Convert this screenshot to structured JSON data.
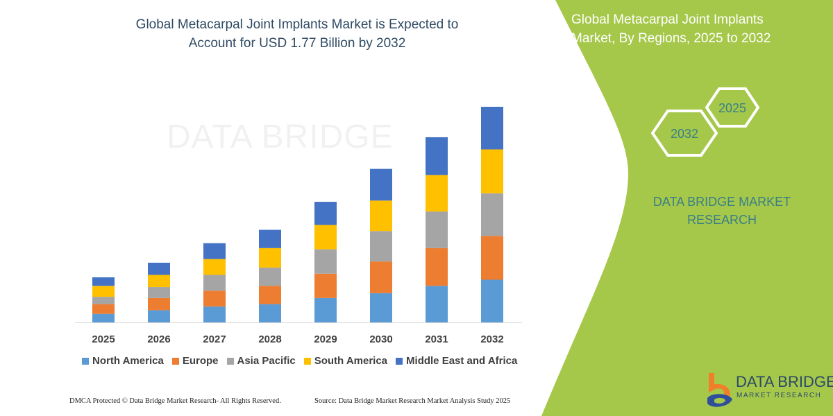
{
  "title_line1": "Global Metacarpal Joint Implants Market is Expected to",
  "title_line2": "Account for USD 1.77 Billion by 2032",
  "right_panel": {
    "title_line1": "Global Metacarpal Joint Implants",
    "title_line2": "Market, By Regions, 2025 to 2032",
    "hex_years": [
      "2032",
      "2025"
    ],
    "brand_line1": "DATA BRIDGE MARKET",
    "brand_line2": "RESEARCH",
    "logo_text": "DATA BRIDGE",
    "logo_subtext": "MARKET RESEARCH"
  },
  "watermark": "DATA BRIDGE",
  "footer": {
    "left": "DMCA Protected © Data Bridge Market Research-  All Rights Reserved.",
    "right": "Source: Data Bridge Market Research  Market Analysis Study 2025"
  },
  "colors": {
    "panel_green": "#a5c84b",
    "brand_teal": "#3b7f86"
  },
  "chart_data": {
    "type": "bar",
    "stacked": true,
    "categories": [
      "2025",
      "2026",
      "2027",
      "2028",
      "2029",
      "2030",
      "2031",
      "2032"
    ],
    "series": [
      {
        "name": "North America",
        "color": "#5b9bd5",
        "values": [
          0.07,
          0.1,
          0.13,
          0.15,
          0.2,
          0.24,
          0.3,
          0.35
        ]
      },
      {
        "name": "Europe",
        "color": "#ed7d31",
        "values": [
          0.08,
          0.1,
          0.13,
          0.15,
          0.2,
          0.26,
          0.31,
          0.36
        ]
      },
      {
        "name": "Asia Pacific",
        "color": "#a5a5a5",
        "values": [
          0.06,
          0.09,
          0.13,
          0.15,
          0.2,
          0.25,
          0.3,
          0.35
        ]
      },
      {
        "name": "South America",
        "color": "#ffc000",
        "values": [
          0.09,
          0.1,
          0.13,
          0.16,
          0.2,
          0.25,
          0.3,
          0.36
        ]
      },
      {
        "name": "Middle East and Africa",
        "color": "#4472c4",
        "values": [
          0.07,
          0.1,
          0.13,
          0.15,
          0.19,
          0.26,
          0.31,
          0.35
        ]
      }
    ],
    "ylim": [
      0,
      1.77
    ],
    "y_axis_shown": false,
    "grid": false,
    "legend_position": "bottom"
  }
}
